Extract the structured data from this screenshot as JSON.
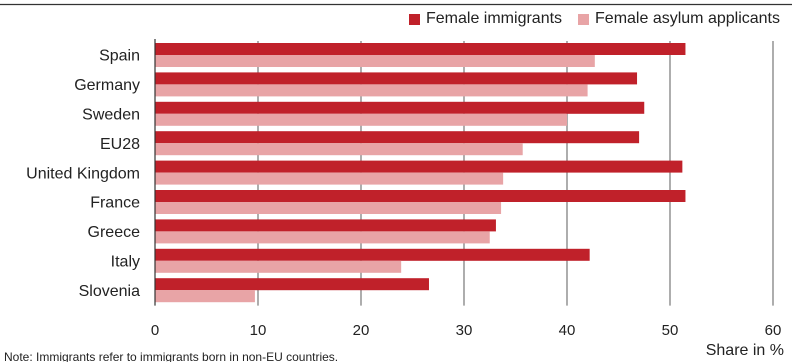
{
  "chart_data": {
    "type": "bar",
    "orientation": "horizontal",
    "categories": [
      "Spain",
      "Germany",
      "Sweden",
      "EU28",
      "United Kingdom",
      "France",
      "Greece",
      "Italy",
      "Slovenia"
    ],
    "series": [
      {
        "name": "Female immigrants",
        "color": "#c0212a",
        "values": [
          51.5,
          46.8,
          47.5,
          47.0,
          51.2,
          51.5,
          33.1,
          42.2,
          26.6
        ]
      },
      {
        "name": "Female asylum applicants",
        "color": "#e8a4a6",
        "values": [
          42.7,
          42.0,
          40.0,
          35.7,
          33.8,
          33.6,
          32.5,
          23.9,
          9.7
        ]
      }
    ],
    "xlim": [
      0,
      60
    ],
    "xticks": [
      0,
      10,
      20,
      30,
      40,
      50,
      60
    ],
    "xlabel": "Share in %",
    "grid": "vertical",
    "legend_position": "top-right",
    "note": "Note: Immigrants refer to immigrants born in non-EU countries."
  }
}
